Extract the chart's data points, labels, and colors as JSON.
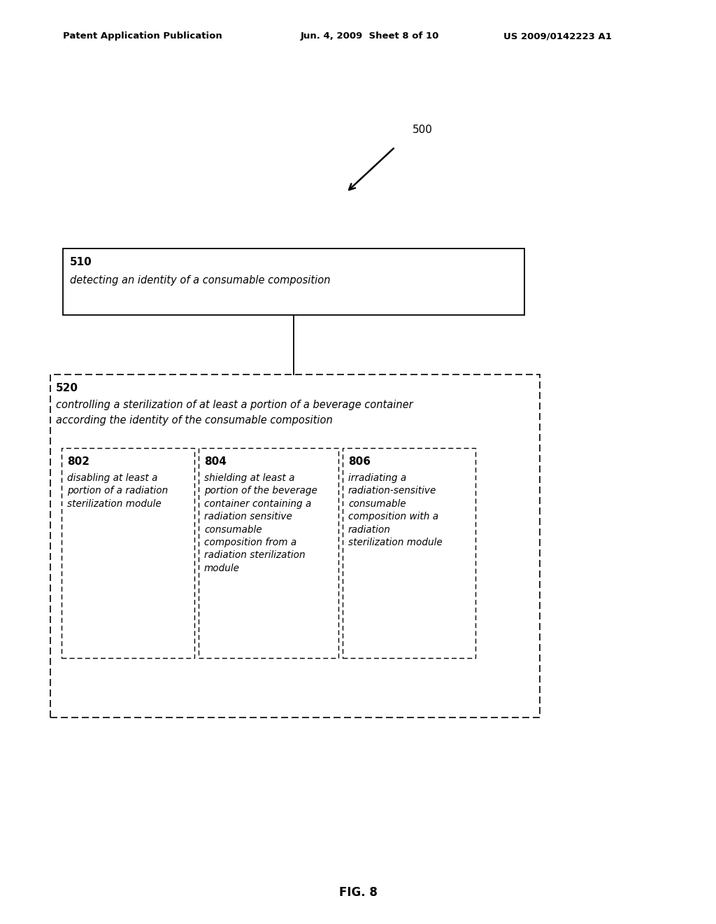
{
  "bg_color": "#ffffff",
  "header_left": "Patent Application Publication",
  "header_mid": "Jun. 4, 2009  Sheet 8 of 10",
  "header_right": "US 2009/0142223 A1",
  "fig_label": "FIG. 8",
  "label_500": "500",
  "box510_label": "510",
  "box510_text": "detecting an identity of a consumable composition",
  "box520_label": "520",
  "box520_line1": "controlling a sterilization of at least a portion of a beverage container",
  "box520_line2": "according the identity of the consumable composition",
  "box802_label": "802",
  "box802_text": "disabling at least a\nportion of a radiation\nsterilization module",
  "box804_label": "804",
  "box804_text": "shielding at least a\nportion of the beverage\ncontainer containing a\nradiation sensitive\nconsumable\ncomposition from a\nradiation sterilization\nmodule",
  "box806_label": "806",
  "box806_text": "irradiating a\nradiation-sensitive\nconsumable\ncomposition with a\nradiation\nsterilization module"
}
